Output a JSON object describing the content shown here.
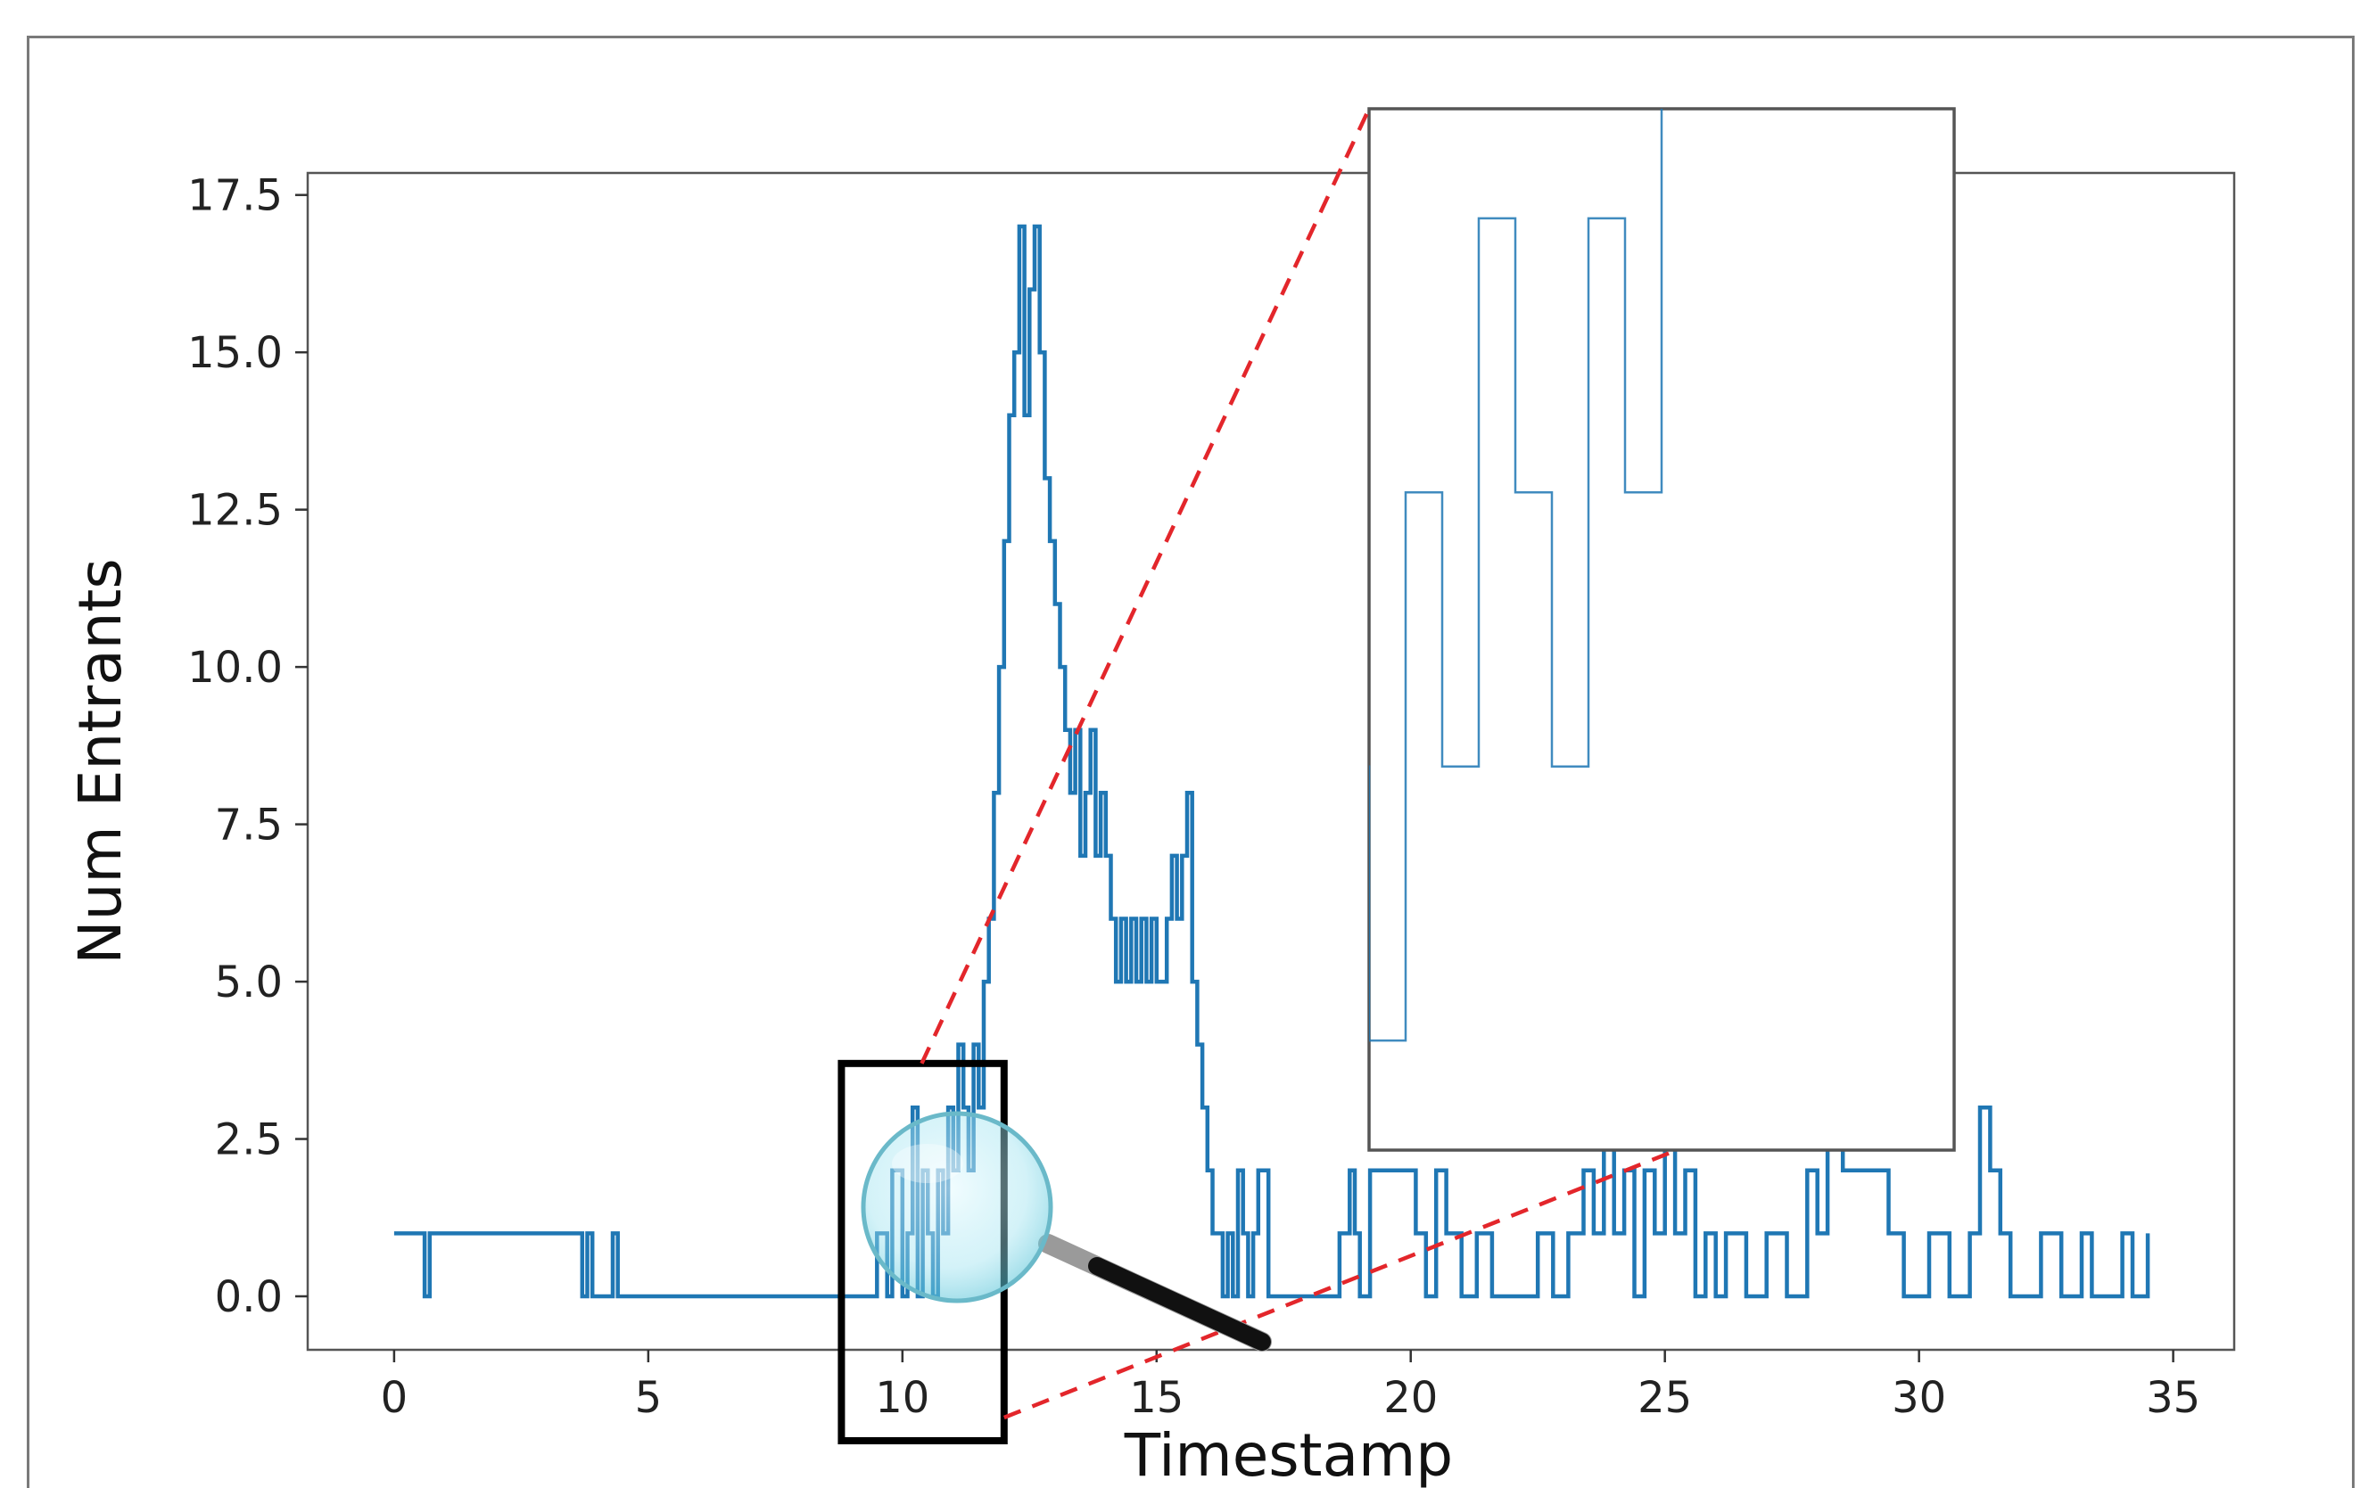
{
  "chart_data": {
    "type": "line",
    "step": true,
    "xlabel": "Timestamp",
    "ylabel": "Num Entrants",
    "xlim": [
      -1.7,
      36.2
    ],
    "ylim": [
      -0.85,
      17.85
    ],
    "xticks": [
      0,
      5,
      10,
      15,
      20,
      25,
      30,
      35
    ],
    "yticks": [
      0.0,
      2.5,
      5.0,
      7.5,
      10.0,
      12.5,
      15.0,
      17.5
    ],
    "yticklabels": [
      "0.0",
      "2.5",
      "5.0",
      "7.5",
      "10.0",
      "12.5",
      "15.0",
      "17.5"
    ],
    "grid": false,
    "legend": "none",
    "series": [
      {
        "color": "#1f77b4",
        "x": [
          0.0,
          0.6,
          0.7,
          3.7,
          3.8,
          3.9,
          4.3,
          4.4,
          9.5,
          9.7,
          9.8,
          10.0,
          10.1,
          10.2,
          10.3,
          10.4,
          10.5,
          10.6,
          10.7,
          10.8,
          10.9,
          11.0,
          11.1,
          11.2,
          11.3,
          11.4,
          11.5,
          11.6,
          11.7,
          11.8,
          11.9,
          12.0,
          12.1,
          12.2,
          12.3,
          12.4,
          12.5,
          12.6,
          12.7,
          12.8,
          12.9,
          13.0,
          13.1,
          13.2,
          13.3,
          13.4,
          13.5,
          13.6,
          13.7,
          13.8,
          13.9,
          14.0,
          14.1,
          14.2,
          14.3,
          14.4,
          14.5,
          14.6,
          14.7,
          14.8,
          14.9,
          15.0,
          15.1,
          15.2,
          15.3,
          15.4,
          15.5,
          15.6,
          15.7,
          15.8,
          15.9,
          16.0,
          16.1,
          16.2,
          16.3,
          16.4,
          16.5,
          16.6,
          16.7,
          16.8,
          16.9,
          17.0,
          17.2,
          18.6,
          18.8,
          18.9,
          19.0,
          19.2,
          20.1,
          20.3,
          20.5,
          20.7,
          21.0,
          21.3,
          21.6,
          22.5,
          22.8,
          23.1,
          23.4,
          23.6,
          23.8,
          24.0,
          24.2,
          24.4,
          24.6,
          24.8,
          25.0,
          25.2,
          25.4,
          25.6,
          25.8,
          26.0,
          26.2,
          26.6,
          27.0,
          27.4,
          27.8,
          28.0,
          28.2,
          28.5,
          29.4,
          29.7,
          30.2,
          30.6,
          31.0,
          31.2,
          31.4,
          31.6,
          31.8,
          32.4,
          32.8,
          33.2,
          33.4,
          34.0,
          34.2,
          34.5
        ],
        "y": [
          1,
          0,
          1,
          0,
          1,
          0,
          1,
          0,
          1,
          0,
          2,
          0,
          1,
          3,
          0,
          2,
          1,
          0,
          2,
          1,
          3,
          2,
          4,
          3,
          2,
          4,
          3,
          5,
          6,
          8,
          10,
          12,
          14,
          15,
          17,
          14,
          16,
          17,
          15,
          13,
          12,
          11,
          10,
          9,
          8,
          9,
          7,
          8,
          9,
          7,
          8,
          7,
          6,
          5,
          6,
          5,
          6,
          5,
          6,
          5,
          6,
          5,
          5,
          6,
          7,
          6,
          7,
          8,
          5,
          4,
          3,
          2,
          1,
          1,
          0,
          1,
          0,
          2,
          1,
          0,
          1,
          2,
          0,
          1,
          2,
          1,
          0,
          2,
          1,
          0,
          2,
          1,
          0,
          1,
          0,
          1,
          0,
          1,
          2,
          1,
          3,
          1,
          2,
          0,
          2,
          1,
          3,
          1,
          2,
          0,
          1,
          0,
          1,
          0,
          1,
          0,
          2,
          1,
          3,
          2,
          1,
          0,
          1,
          0,
          1,
          3,
          2,
          1,
          0,
          1,
          0,
          1,
          0,
          1,
          0,
          1
        ]
      }
    ]
  }
}
